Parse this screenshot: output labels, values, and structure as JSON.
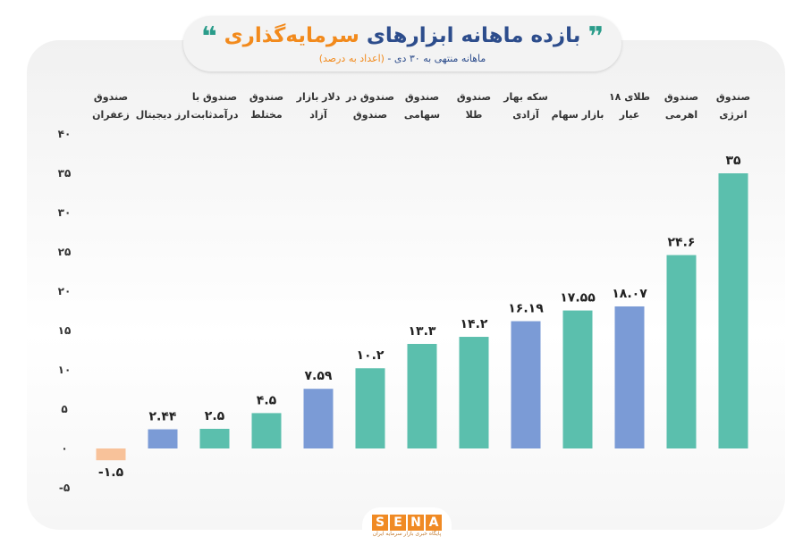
{
  "header": {
    "quote_open": "❞",
    "title_part1": "بازده ماهانه ابزارهای",
    "title_part2": "سرمایه‌گذاری",
    "quote_close": "❝",
    "subtitle": "ماهانه منتهی به ۳۰ دی - ",
    "subtitle_note": "(اعداد به درصد)"
  },
  "logo": {
    "letters": [
      "S",
      "E",
      "N",
      "A"
    ],
    "tagline": "پایگاه خبری بازار سرمایه ایران"
  },
  "chart_data": {
    "type": "bar",
    "ylim": [
      -5,
      40
    ],
    "yticks": [
      -5,
      0,
      5,
      10,
      15,
      20,
      25,
      30,
      35,
      40
    ],
    "ytick_labels": [
      "-۵",
      "۰",
      "۵",
      "۱۰",
      "۱۵",
      "۲۰",
      "۲۵",
      "۳۰",
      "۳۵",
      "۴۰"
    ],
    "grid": false,
    "categories": [
      [
        "صندوق",
        "زعفران"
      ],
      [
        "",
        "ارز دیجیتال"
      ],
      [
        "صندوق با",
        "درآمدثابت"
      ],
      [
        "صندوق",
        "مختلط"
      ],
      [
        "دلار بازار",
        "آزاد"
      ],
      [
        "صندوق در",
        "صندوق"
      ],
      [
        "صندوق",
        "سهامی"
      ],
      [
        "صندوق",
        "طلا"
      ],
      [
        "سکه بهار",
        "آزادی"
      ],
      [
        "",
        "بازار سهام"
      ],
      [
        "طلای ۱۸",
        "عیار"
      ],
      [
        "صندوق",
        "اهرمی"
      ],
      [
        "صندوق",
        "انرژی"
      ]
    ],
    "values": [
      -1.5,
      2.44,
      2.5,
      4.5,
      7.59,
      10.2,
      13.3,
      14.2,
      16.19,
      17.55,
      18.07,
      24.6,
      35
    ],
    "value_labels": [
      "-۱.۵",
      "۲.۴۴",
      "۲.۵",
      "۴.۵",
      "۷.۵۹",
      "۱۰.۲",
      "۱۳.۳",
      "۱۴.۲",
      "۱۶.۱۹",
      "۱۷.۵۵",
      "۱۸.۰۷",
      "۲۴.۶",
      "۳۵"
    ],
    "colors": [
      "#f8c29a",
      "#7b9bd6",
      "#5bbfad",
      "#5bbfad",
      "#7b9bd6",
      "#5bbfad",
      "#5bbfad",
      "#5bbfad",
      "#7b9bd6",
      "#5bbfad",
      "#7b9bd6",
      "#5bbfad",
      "#5bbfad"
    ]
  }
}
